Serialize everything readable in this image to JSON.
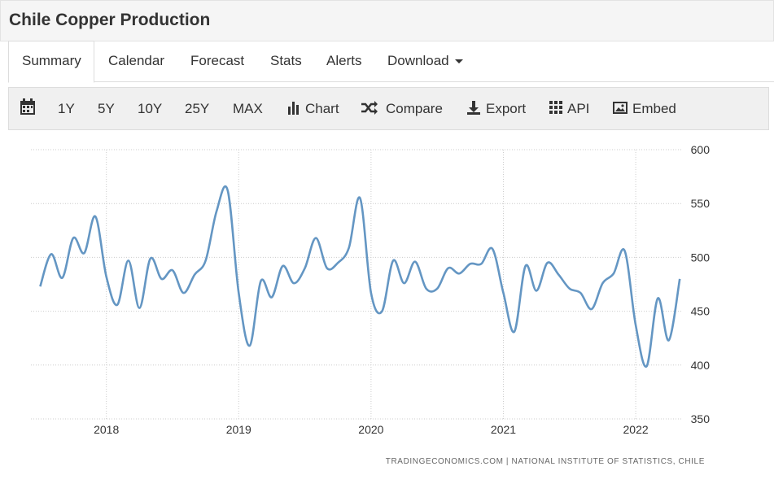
{
  "header": {
    "title": "Chile Copper Production"
  },
  "tabs": [
    "Summary",
    "Calendar",
    "Forecast",
    "Stats",
    "Alerts",
    "Download"
  ],
  "toolbar": [
    "1Y",
    "5Y",
    "10Y",
    "25Y",
    "MAX",
    "Chart",
    "Compare",
    "Export",
    "API",
    "Embed"
  ],
  "source": "TRADINGECONOMICS.COM | NATIONAL INSTITUTE OF STATISTICS, CHILE",
  "chart_data": {
    "type": "line",
    "x": [
      2017.5,
      2017.583,
      2017.667,
      2017.75,
      2017.833,
      2017.917,
      2018,
      2018.083,
      2018.167,
      2018.25,
      2018.333,
      2018.417,
      2018.5,
      2018.583,
      2018.667,
      2018.75,
      2018.833,
      2018.917,
      2019,
      2019.083,
      2019.167,
      2019.25,
      2019.333,
      2019.417,
      2019.5,
      2019.583,
      2019.667,
      2019.75,
      2019.833,
      2019.917,
      2020,
      2020.083,
      2020.167,
      2020.25,
      2020.333,
      2020.417,
      2020.5,
      2020.583,
      2020.667,
      2020.75,
      2020.833,
      2020.917,
      2021,
      2021.083,
      2021.167,
      2021.25,
      2021.333,
      2021.417,
      2021.5,
      2021.583,
      2021.667,
      2021.75,
      2021.833,
      2021.917,
      2022,
      2022.083,
      2022.167,
      2022.25,
      2022.333
    ],
    "series": [
      {
        "color": "#6496c3",
        "values": [
          473,
          503,
          481,
          518,
          504,
          538,
          482,
          456,
          497,
          453,
          499,
          480,
          488,
          467,
          484,
          497,
          543,
          562,
          467,
          418,
          478,
          463,
          492,
          476,
          490,
          518,
          490,
          495,
          509,
          555,
          467,
          450,
          497,
          476,
          496,
          471,
          471,
          490,
          485,
          494,
          494,
          508,
          467,
          431,
          492,
          469,
          495,
          484,
          471,
          467,
          452,
          476,
          485,
          506,
          437,
          399,
          462,
          423,
          480
        ]
      }
    ],
    "xlim": [
      2017.43,
      2022.35
    ],
    "xticks": [
      2018,
      2019,
      2020,
      2021,
      2022
    ],
    "ylim": [
      350,
      600
    ],
    "yticks": [
      350,
      400,
      450,
      500,
      550,
      600
    ],
    "grid": true
  }
}
